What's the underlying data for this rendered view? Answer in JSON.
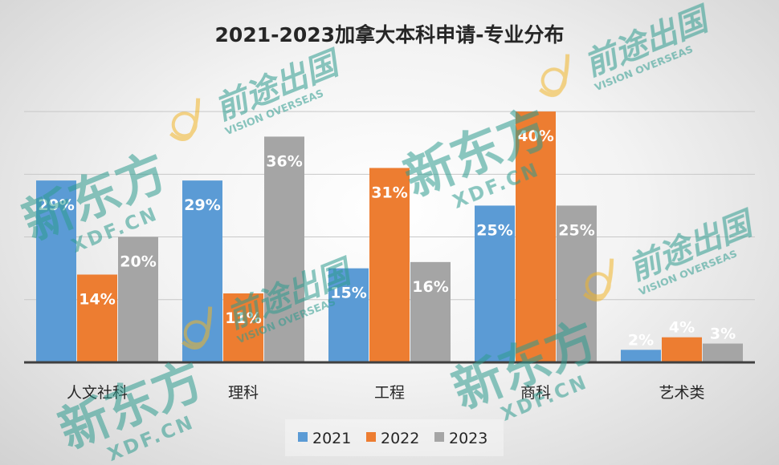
{
  "chart_data": {
    "type": "bar",
    "title": "2021-2023加拿大本科申请-专业分布",
    "categories": [
      "人文社科",
      "理科",
      "工程",
      "商科",
      "艺术类"
    ],
    "series": [
      {
        "name": "2021",
        "color": "#5b9bd5",
        "values": [
          29,
          29,
          15,
          25,
          2
        ]
      },
      {
        "name": "2022",
        "color": "#ed7d31",
        "values": [
          14,
          11,
          31,
          40,
          4
        ]
      },
      {
        "name": "2023",
        "color": "#a5a5a5",
        "values": [
          20,
          36,
          16,
          25,
          3
        ]
      }
    ],
    "value_suffix": "%",
    "ylim": [
      0,
      45
    ],
    "grid": true,
    "legend_position": "bottom"
  },
  "watermarks": {
    "brand_text": "新东方",
    "brand_url": "XDF.CN",
    "vision_text": "前途出国",
    "vision_en": "VISION OVERSEAS"
  }
}
